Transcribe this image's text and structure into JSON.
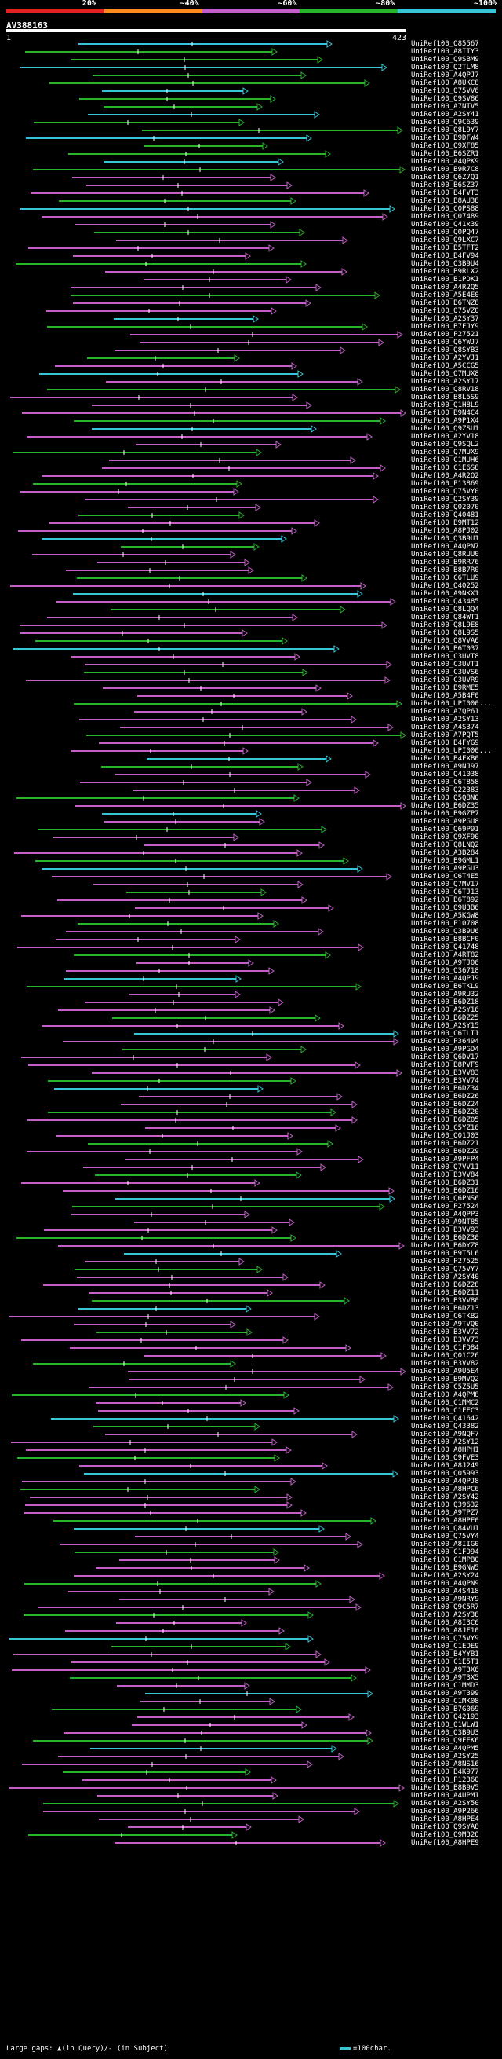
{
  "legend": [
    {
      "label": "20%",
      "color": "#e52222"
    },
    {
      "label": "~40%",
      "color": "#ff8a1e"
    },
    {
      "label": "~60%",
      "color": "#c45fc9"
    },
    {
      "label": "~80%",
      "color": "#27b52a"
    },
    {
      "label": "~100%",
      "color": "#37c6d8"
    }
  ],
  "query": {
    "name": "AV388163",
    "start": "1",
    "end": "423",
    "length": 423
  },
  "hits": [
    "UniRef100_Q85567",
    "UniRef100_A8ITY3",
    "UniRef100_Q9SBM9",
    "UniRef100_Q2TLM8",
    "UniRef100_A4QPJ7",
    "UniRef100_A8UKC8",
    "UniRef100_Q75VV6",
    "UniRef100_Q9SV86",
    "UniRef100_A7NTV5",
    "UniRef100_A2SY41",
    "UniRef100_Q9C639",
    "UniRef100_Q8L9Y7",
    "UniRef100_B9DFW4",
    "UniRef100_Q9XF85",
    "UniRef100_B6SZR1",
    "UniRef100_A4QPK9",
    "UniRef100_B9R7C8",
    "UniRef100_Q6Z7Q1",
    "UniRef100_B6SZ37",
    "UniRef100_B4FVT3",
    "UniRef100_B8AU38",
    "UniRef100_C0PS88",
    "UniRef100_Q07489",
    "UniRef100_Q41x39",
    "UniRef100_Q0PQ47",
    "UniRef100_Q9LXC7",
    "UniRef100_B5TFT2",
    "UniRef100_B4FV94",
    "UniRef100_Q3B9U4",
    "UniRef100_B9RLX2",
    "UniRef100_B1PDK1",
    "UniRef100_A4R2Q5",
    "UniRef100_A5E4E0",
    "UniRef100_B6TNZ8",
    "UniRef100_Q75VZ0",
    "UniRef100_A2SY37",
    "UniRef100_B7FJY9",
    "UniRef100_P27521",
    "UniRef100_Q6YWJ7",
    "UniRef100_Q8SYB3",
    "UniRef100_A2YVJ1",
    "UniRef100_A5CCG5",
    "UniRef100_Q7MUX8",
    "UniRef100_A2SY17",
    "UniRef100_Q8RV18",
    "UniRef100_B8L5S9",
    "UniRef100_Q1H8L9",
    "UniRef100_B9N4C4",
    "UniRef100_A9P1X4",
    "UniRef100_Q9ZSU1",
    "UniRef100_A2YV18",
    "UniRef100_Q9SQL2",
    "UniRef100_Q7MUX9",
    "UniRef100_C1MUH6",
    "UniRef100_C1E6S8",
    "UniRef100_A4R2Q2",
    "UniRef100_P13869",
    "UniRef100_Q75VY0",
    "UniRef100_Q2SY39",
    "UniRef100_Q02070",
    "UniRef100_Q40481",
    "UniRef100_B9MT12",
    "UniRef100_A8PJ02",
    "UniRef100_Q3B9U1",
    "UniRef100_A4QPN7",
    "UniRef100_Q8RUU0",
    "UniRef100_B9RR76",
    "UniRef100_B8B7R0",
    "UniRef100_C6TLU9",
    "UniRef100_Q40252",
    "UniRef100_A9NKX1",
    "UniRef100_Q43485",
    "UniRef100_Q8LQQ4",
    "UniRef100_Q84WT1",
    "UniRef100_Q8L9E8",
    "UniRef100_Q8L9S5",
    "UniRef100_Q8VVA6",
    "UniRef100_B6T037",
    "UniRef100_C3UVT8",
    "UniRef100_C3UVT1",
    "UniRef100_C3UVS6",
    "UniRef100_C3UVR9",
    "UniRef100_B9RME5",
    "UniRef100_A5B4F0",
    "UniRef100_UPI000...",
    "UniRef100_A7QP61",
    "UniRef100_A2SY13",
    "UniRef100_A4S374",
    "UniRef100_A7PQT5",
    "UniRef100_B4FYG9",
    "UniRef100_UPI000...",
    "UniRef100_B4FXB0",
    "UniRef100_A9NJ97",
    "UniRef100_Q41038",
    "UniRef100_C6T858",
    "UniRef100_Q22383",
    "UniRef100_Q5QBN0",
    "UniRef100_B6DZ35",
    "UniRef100_B9GZP7",
    "UniRef100_A9PGU8",
    "UniRef100_Q69P91",
    "UniRef100_Q9XF90",
    "UniRef100_Q8LNQ2",
    "UniRef100_A3B284",
    "UniRef100_B9GML1",
    "UniRef100_A9PGU3",
    "UniRef100_C6T4E5",
    "UniRef100_Q7MV17",
    "UniRef100_C6TJ13",
    "UniRef100_B6T892",
    "UniRef100_Q9U3B6",
    "UniRef100_A5KGW8",
    "UniRef100_P10708",
    "UniRef100_Q3B9U6",
    "UniRef100_B8BCF0",
    "UniRef100_Q41748",
    "UniRef100_A4RT82",
    "UniRef100_A9TJ06",
    "UniRef100_Q36718",
    "UniRef100_A4QPJ9",
    "UniRef100_B6TKL9",
    "UniRef100_A9RU32",
    "UniRef100_B6DZ18",
    "UniRef100_A2SY16",
    "UniRef100_B6DZ25",
    "UniRef100_A2SY15",
    "UniRef100_C6TLI1",
    "UniRef100_P36494",
    "UniRef100_A9PGD4",
    "UniRef100_Q6DV17",
    "UniRef100_B8PVF9",
    "UniRef100_B3VV83",
    "UniRef100_B3VV74",
    "UniRef100_B6DZ34",
    "UniRef100_B6DZ26",
    "UniRef100_B6DZ24",
    "UniRef100_B6DZ20",
    "UniRef100_B6DZ05",
    "UniRef100_C5YZ16",
    "UniRef100_Q01J03",
    "UniRef100_B6DZ21",
    "UniRef100_B6DZ29",
    "UniRef100_A9PFP4",
    "UniRef100_Q7VV11",
    "UniRef100_B3VV84",
    "UniRef100_B6DZ31",
    "UniRef100_B6DZ16",
    "UniRef100_Q6PNS6",
    "UniRef100_P27524",
    "UniRef100_A4QPP3",
    "UniRef100_A9NT85",
    "UniRef100_B3VV93",
    "UniRef100_B6DZ30",
    "UniRef100_B6DYZ8",
    "UniRef100_B9T5L6",
    "UniRef100_P27525",
    "UniRef100_Q75VY7",
    "UniRef100_A2SY40",
    "UniRef100_B6DZ28",
    "UniRef100_B6DZ11",
    "UniRef100_B3VV80",
    "UniRef100_B6DZ13",
    "UniRef100_C6TKB2",
    "UniRef100_A9TVQ0",
    "UniRef100_B3VV72",
    "UniRef100_B3VV73",
    "UniRef100_C1FD84",
    "UniRef100_Q01C26",
    "UniRef100_B3VV82",
    "UniRef100_A9U5E4",
    "UniRef100_B9MVQ2",
    "UniRef100_C5Z5U5",
    "UniRef100_A4QPM8",
    "UniRef100_C1MMC2",
    "UniRef100_C1FEC3",
    "UniRef100_Q41642",
    "UniRef100_Q43382",
    "UniRef100_A9NQF7",
    "UniRef100_A2SY12",
    "UniRef100_A8HPH1",
    "UniRef100_Q9FVE3",
    "UniRef100_A8J249",
    "UniRef100_Q05993",
    "UniRef100_A4QPJ8",
    "UniRef100_A8HPC6",
    "UniRef100_A2SY42",
    "UniRef100_Q39632",
    "UniRef100_A9TPZ7",
    "UniRef100_A8HPE0",
    "UniRef100_Q84VU1",
    "UniRef100_Q75VY4",
    "UniRef100_A8IIG0",
    "UniRef100_C1FD94",
    "UniRef100_C1MPB0",
    "UniRef100_B9GNW5",
    "UniRef100_A2SY24",
    "UniRef100_A4QPN9",
    "UniRef100_A4S418",
    "UniRef100_A9NRY9",
    "UniRef100_Q9C5R7",
    "UniRef100_A2SY38",
    "UniRef100_A8I3C6",
    "UniRef100_A8JF10",
    "UniRef100_Q75VY9",
    "UniRef100_C1EDE9",
    "UniRef100_B4YYB1",
    "UniRef100_C1E5T1",
    "UniRef100_A9T3X6",
    "UniRef100_A9T3X5",
    "UniRef100_C1MMD3",
    "UniRef100_A9T399",
    "UniRef100_C1MK08",
    "UniRef100_B7G069",
    "UniRef100_Q42193",
    "UniRef100_Q1WLW1",
    "UniRef100_Q3B9U3",
    "UniRef100_Q9FEK6",
    "UniRef100_A4QPM5",
    "UniRef100_A2SY25",
    "UniRef100_A8NS16",
    "UniRef100_B4K977",
    "UniRef100_P12360",
    "UniRef100_B8B9V5",
    "UniRef100_A4UPM1",
    "UniRef100_A2SY50",
    "UniRef100_A9P266",
    "UniRef100_A8HPE4",
    "UniRef100_Q9SYA8",
    "UniRef100_Q9M320",
    "UniRef100_A8HPE9"
  ],
  "footer": {
    "gaps_label": "Large gaps: ▲(in Query)/- (in Subject)",
    "scale_label": "=100char."
  }
}
